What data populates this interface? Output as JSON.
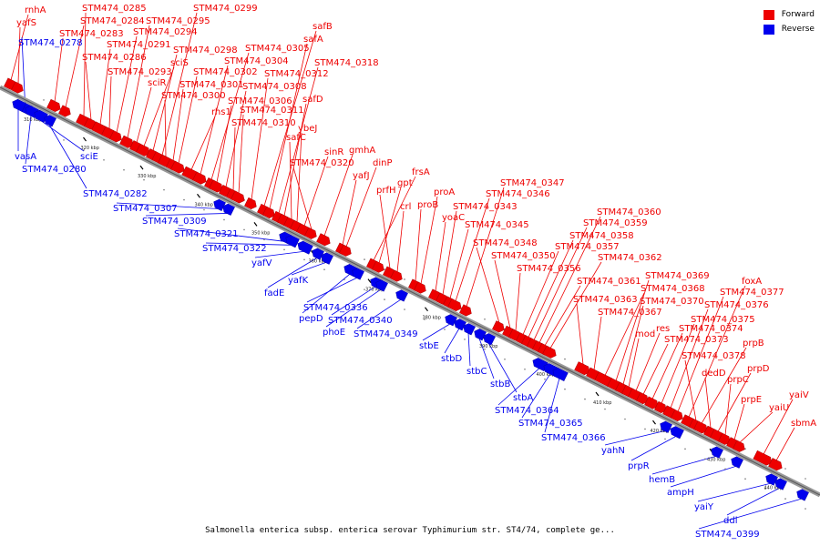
{
  "caption": "Salmonella enterica subsp. enterica serovar Typhimurium str. ST4/74, complete ge...",
  "legend": [
    {
      "label": "Forward",
      "color": "#ee0000"
    },
    {
      "label": "Reverse",
      "color": "#0000ee"
    }
  ],
  "colors": {
    "forward": "#ee0000",
    "reverse": "#0000ee",
    "backbone": "#999999"
  },
  "ticks": [
    "310 kbp",
    "320 kbp",
    "330 kbp",
    "340 kbp",
    "350 kbp",
    "360 kbp",
    "370 kbp",
    "380 kbp",
    "390 kbp",
    "400 kbp",
    "410 kbp",
    "420 kbp",
    "430 kbp",
    "440 kbp"
  ],
  "forward_genes": [
    "rnhA",
    "yafS",
    "STM474_0283",
    "STM474_0284",
    "STM474_0285",
    "STM474_0286",
    "STM474_0291",
    "STM474_0293",
    "STM474_0294",
    "STM474_0295",
    "sciR",
    "sciS",
    "STM474_0298",
    "STM474_0299",
    "STM474_0300",
    "STM474_0301",
    "STM474_0302",
    "rhs1",
    "STM474_0304",
    "STM474_0305",
    "STM474_0306",
    "STM474_0308",
    "STM474_0310",
    "STM474_0311",
    "STM474_0312",
    "safB",
    "safA",
    "STM474_0318",
    "safD",
    "safC",
    "ybeJ",
    "sinR",
    "STM474_0320",
    "gmhA",
    "yafJ",
    "dinP",
    "frsA",
    "gpt",
    "prfH",
    "crl",
    "proB",
    "proA",
    "yoaC",
    "STM474_0343",
    "STM474_0345",
    "STM474_0346",
    "STM474_0347",
    "STM474_0348",
    "STM474_0350",
    "STM474_0356",
    "STM474_0357",
    "STM474_0358",
    "STM474_0359",
    "STM474_0360",
    "STM474_0361",
    "STM474_0362",
    "STM474_0363",
    "STM474_0367",
    "STM474_0368",
    "STM474_0369",
    "STM474_0370",
    "mod",
    "res",
    "STM474_0373",
    "STM474_0374",
    "STM474_0375",
    "STM474_0376",
    "STM474_0377",
    "foxA",
    "STM474_0378",
    "prpB",
    "dedD",
    "prpD",
    "prpC",
    "prpE",
    "yaiU",
    "yaiV",
    "sbmA"
  ],
  "reverse_genes": [
    "STM474_0278",
    "vasA",
    "STM474_0280",
    "sciE",
    "STM474_0282",
    "STM474_0307",
    "STM474_0309",
    "STM474_0321",
    "STM474_0322",
    "yafV",
    "fadE",
    "yafK",
    "pepD",
    "STM474_0336",
    "STM474_0340",
    "phoE",
    "STM474_0349",
    "stbE",
    "stbD",
    "stbC",
    "stbB",
    "stbA",
    "STM474_0364",
    "STM474_0365",
    "STM474_0366",
    "yahN",
    "prpR",
    "hemB",
    "ampH",
    "yaiY",
    "ddl",
    "STM474_0399"
  ]
}
